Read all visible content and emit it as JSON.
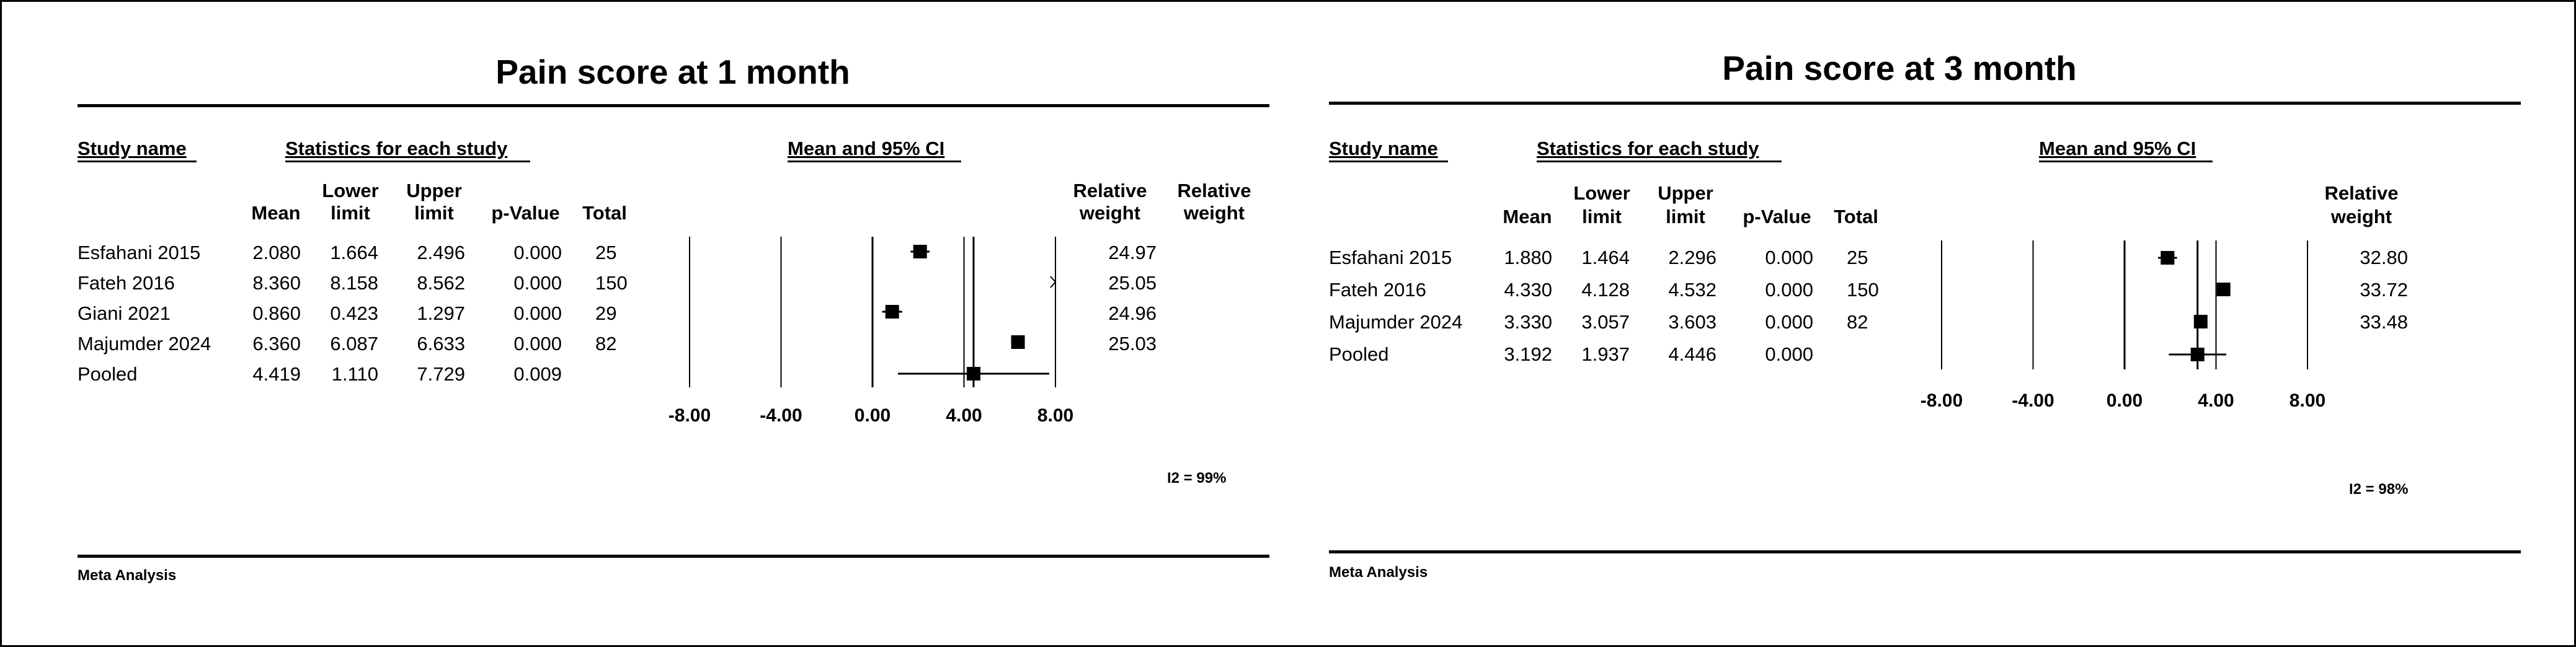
{
  "chart_data": [
    {
      "type": "forest",
      "title": "Pain score at 1 month",
      "headers": {
        "study_name": "Study name",
        "statistics": "Statistics for each study",
        "plot": "Mean and 95% CI",
        "mean": "Mean",
        "lower": [
          "Lower",
          "limit"
        ],
        "upper": [
          "Upper",
          "limit"
        ],
        "pvalue": "p-Value",
        "total": "Total",
        "rel_weight_1": [
          "Relative",
          "weight"
        ],
        "rel_weight_2": [
          "Relative",
          "weight"
        ]
      },
      "rows": [
        {
          "study": "Esfahani 2015",
          "mean": "2.080",
          "lower": "1.664",
          "upper": "2.496",
          "p": "0.000",
          "total": "25",
          "weight": "24.97"
        },
        {
          "study": "Fateh 2016",
          "mean": "8.360",
          "lower": "8.158",
          "upper": "8.562",
          "p": "0.000",
          "total": "150",
          "weight": "25.05"
        },
        {
          "study": "Giani 2021",
          "mean": "0.860",
          "lower": "0.423",
          "upper": "1.297",
          "p": "0.000",
          "total": "29",
          "weight": "24.96"
        },
        {
          "study": "Majumder 2024",
          "mean": "6.360",
          "lower": "6.087",
          "upper": "6.633",
          "p": "0.000",
          "total": "82",
          "weight": "25.03"
        },
        {
          "study": "Pooled",
          "mean": "4.419",
          "lower": "1.110",
          "upper": "7.729",
          "p": "0.009",
          "total": "",
          "weight": ""
        }
      ],
      "x_ticks": [
        "-8.00",
        "-4.00",
        "0.00",
        "4.00",
        "8.00"
      ],
      "x_tick_values": [
        -8,
        -4,
        0,
        4,
        8
      ],
      "xlim": [
        -8,
        8
      ],
      "i2": "I2 = 99%",
      "footer": "Meta Analysis"
    },
    {
      "type": "forest",
      "title": "Pain score at 3 month",
      "headers": {
        "study_name": "Study name",
        "statistics": "Statistics for each study",
        "plot": "Mean and 95% CI",
        "mean": "Mean",
        "lower": [
          "Lower",
          "limit"
        ],
        "upper": [
          "Upper",
          "limit"
        ],
        "pvalue": "p-Value",
        "total": "Total",
        "rel_weight": [
          "Relative",
          "weight"
        ]
      },
      "rows": [
        {
          "study": "Esfahani 2015",
          "mean": "1.880",
          "lower": "1.464",
          "upper": "2.296",
          "p": "0.000",
          "total": "25",
          "weight": "32.80"
        },
        {
          "study": "Fateh 2016",
          "mean": "4.330",
          "lower": "4.128",
          "upper": "4.532",
          "p": "0.000",
          "total": "150",
          "weight": "33.72"
        },
        {
          "study": "Majumder 2024",
          "mean": "3.330",
          "lower": "3.057",
          "upper": "3.603",
          "p": "0.000",
          "total": "82",
          "weight": "33.48"
        },
        {
          "study": "Pooled",
          "mean": "3.192",
          "lower": "1.937",
          "upper": "4.446",
          "p": "0.000",
          "total": "",
          "weight": ""
        }
      ],
      "x_ticks": [
        "-8.00",
        "-4.00",
        "0.00",
        "4.00",
        "8.00"
      ],
      "x_tick_values": [
        -8,
        -4,
        0,
        4,
        8
      ],
      "xlim": [
        -8,
        8
      ],
      "i2": "I2 = 98%",
      "footer": "Meta Analysis"
    }
  ]
}
